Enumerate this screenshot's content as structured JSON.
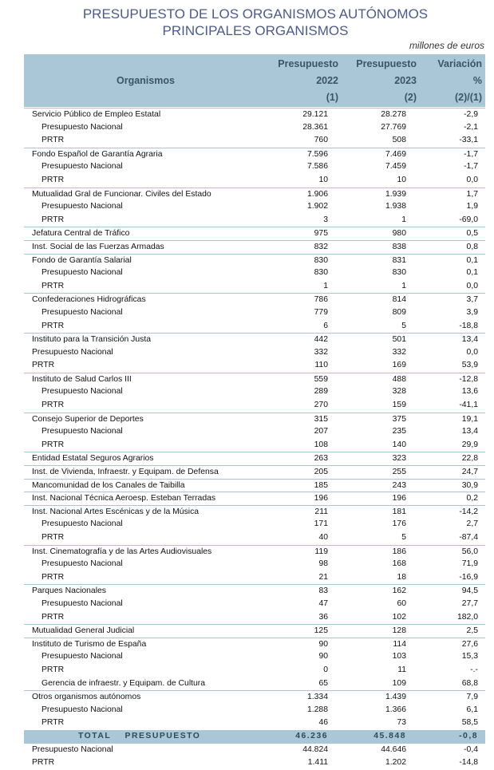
{
  "header": {
    "title": [
      "PRESUPUESTO DE LOS ORGANISMOS AUTÓNOMOS",
      "PRINCIPALES ORGANISMOS"
    ],
    "units": "millones de euros"
  },
  "table": {
    "columns": [
      [
        "Organismos"
      ],
      [
        "Presupuesto",
        "2022",
        "(1)"
      ],
      [
        "Presupuesto",
        "2023",
        "(2)"
      ],
      [
        "Variación",
        "%",
        "(2)/(1)"
      ]
    ],
    "groups": [
      {
        "row": [
          "Servicio Público de Empleo Estatal",
          "29.121",
          "28.278",
          "-2,9"
        ],
        "sub": [
          [
            "Presupuesto Nacional",
            "28.361",
            "27.769",
            "-2,1"
          ],
          [
            "PRTR",
            "760",
            "508",
            "-33,1"
          ]
        ]
      },
      {
        "row": [
          "Fondo Español de Garantía Agraria",
          "7.596",
          "7.469",
          "-1,7"
        ],
        "sub": [
          [
            "Presupuesto Nacional",
            "7.586",
            "7.459",
            "-1,7"
          ],
          [
            "PRTR",
            "10",
            "10",
            "0,0"
          ]
        ]
      },
      {
        "row": [
          "Mutualidad Gral de Funcionar. Civiles del Estado",
          "1.906",
          "1.939",
          "1,7"
        ],
        "sub": [
          [
            "Presupuesto Nacional",
            "1.902",
            "1.938",
            "1,9"
          ],
          [
            "PRTR",
            "3",
            "1",
            "-69,0"
          ]
        ]
      },
      {
        "row": [
          "Jefatura Central de Tráfico",
          "975",
          "980",
          "0,5"
        ]
      },
      {
        "row": [
          "Inst. Social de las Fuerzas Armadas",
          "832",
          "838",
          "0,8"
        ]
      },
      {
        "row": [
          "Fondo de Garantía Salarial",
          "830",
          "831",
          "0,1"
        ],
        "sub": [
          [
            "Presupuesto Nacional",
            "830",
            "830",
            "0,1"
          ],
          [
            "PRTR",
            "1",
            "1",
            "0,0"
          ]
        ]
      },
      {
        "row": [
          "Confederaciones Hidrográficas",
          "786",
          "814",
          "3,7"
        ],
        "sub": [
          [
            "Presupuesto Nacional",
            "779",
            "809",
            "3,9"
          ],
          [
            "PRTR",
            "6",
            "5",
            "-18,8"
          ]
        ]
      },
      {
        "row": [
          "Instituto para la Transición Justa",
          "442",
          "501",
          "13,4"
        ],
        "flat": [
          [
            "Presupuesto Nacional",
            "332",
            "332",
            "0,0"
          ],
          [
            "PRTR",
            "110",
            "169",
            "53,9"
          ]
        ]
      },
      {
        "row": [
          "Instituto de Salud Carlos III",
          "559",
          "488",
          "-12,8"
        ],
        "sub": [
          [
            "Presupuesto Nacional",
            "289",
            "328",
            "13,6"
          ],
          [
            "PRTR",
            "270",
            "159",
            "-41,1"
          ]
        ]
      },
      {
        "row": [
          "Consejo Superior de Deportes",
          "315",
          "375",
          "19,1"
        ],
        "sub": [
          [
            "Presupuesto Nacional",
            "207",
            "235",
            "13,4"
          ],
          [
            "PRTR",
            "108",
            "140",
            "29,9"
          ]
        ]
      },
      {
        "row": [
          "Entidad Estatal Seguros Agrarios",
          "263",
          "323",
          "22,8"
        ]
      },
      {
        "row": [
          "Inst. de Vivienda, Infraestr. y Equipam. de Defensa",
          "205",
          "255",
          "24,7"
        ]
      },
      {
        "row": [
          "Mancomunidad de los Canales de Taibilla",
          "185",
          "243",
          "30,9"
        ]
      },
      {
        "row": [
          "Inst. Nacional Técnica Aeroesp. Esteban Terradas",
          "196",
          "196",
          "0,2"
        ]
      },
      {
        "row": [
          "Inst. Nacional Artes Escénicas y de la Música",
          "211",
          "181",
          "-14,2"
        ],
        "sub": [
          [
            "Presupuesto Nacional",
            "171",
            "176",
            "2,7"
          ],
          [
            "PRTR",
            "40",
            "5",
            "-87,4"
          ]
        ]
      },
      {
        "row": [
          "Inst. Cinematografía y de las Artes Audiovisuales",
          "119",
          "186",
          "56,0"
        ],
        "sub": [
          [
            "Presupuesto Nacional",
            "98",
            "168",
            "71,9"
          ],
          [
            "PRTR",
            "21",
            "18",
            "-16,9"
          ]
        ]
      },
      {
        "row": [
          "Parques Nacionales",
          "83",
          "162",
          "94,5"
        ],
        "sub": [
          [
            "Presupuesto Nacional",
            "47",
            "60",
            "27,7"
          ],
          [
            "PRTR",
            "36",
            "102",
            "182,0"
          ]
        ]
      },
      {
        "row": [
          "Mutualidad General Judicial",
          "125",
          "128",
          "2,5"
        ]
      },
      {
        "row": [
          "Instituto de Turismo de España",
          "90",
          "114",
          "27,6"
        ],
        "sub": [
          [
            "Presupuesto Nacional",
            "90",
            "103",
            "15,3"
          ],
          [
            "PRTR",
            "0",
            "11",
            "-.-"
          ],
          [
            "Gerencia de infraestr. y Equipam. de Cultura",
            "65",
            "109",
            "68,8"
          ]
        ]
      },
      {
        "row": [
          "Otros organismos autónomos",
          "1.334",
          "1.439",
          "7,9"
        ],
        "sub": [
          [
            "Presupuesto Nacional",
            "1.288",
            "1.366",
            "6,1"
          ],
          [
            "PRTR",
            "46",
            "73",
            "58,5"
          ]
        ]
      }
    ],
    "total": {
      "row": [
        "TOTAL    PRESUPUESTO",
        "46.236",
        "45.848",
        "-0,8"
      ],
      "flat": [
        [
          "Presupuesto Nacional",
          "44.824",
          "44.646",
          "-0,4"
        ],
        [
          "PRTR",
          "1.411",
          "1.202",
          "-14,8"
        ]
      ]
    }
  }
}
